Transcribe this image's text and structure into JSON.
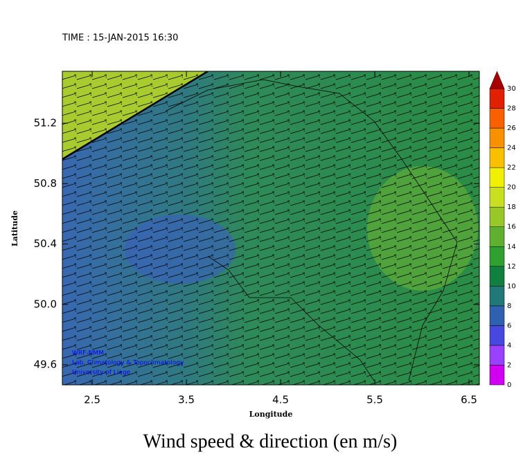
{
  "chart_data": {
    "type": "map",
    "title": "Wind speed & direction (en m/s)",
    "time": "TIME : 15-JAN-2015 16:30",
    "x_label": "Longitude",
    "y_label": "Latitude",
    "credits": [
      "WRF-NMM",
      "Lab. Climatology & Topoclimatology",
      "University of Liege"
    ],
    "xlim": [
      2.183,
      6.61
    ],
    "ylim": [
      49.467,
      51.544
    ],
    "xticks": [
      2.5,
      3.5,
      4.5,
      5.5,
      6.5
    ],
    "yticks": [
      {
        "value": 49.6,
        "label": "49.6"
      },
      {
        "value": 50.0,
        "label": "50.0"
      },
      {
        "value": 50.4,
        "label": "50.4"
      },
      {
        "value": 50.8,
        "label": "50.8"
      },
      {
        "value": 51.2,
        "label": "51.2"
      }
    ],
    "colorbar": {
      "levels": [
        0,
        2,
        4,
        6,
        8,
        10,
        12,
        14,
        16,
        18,
        20,
        22,
        24,
        26,
        28,
        30
      ],
      "colors": [
        "#d000f0",
        "#9a40ff",
        "#4848e0",
        "#3060b0",
        "#207878",
        "#108040",
        "#30a030",
        "#60b030",
        "#98c828",
        "#c8e020",
        "#f0f000",
        "#f8c000",
        "#f89000",
        "#f86000",
        "#e02000"
      ],
      "over_color": "#a80000"
    }
  }
}
